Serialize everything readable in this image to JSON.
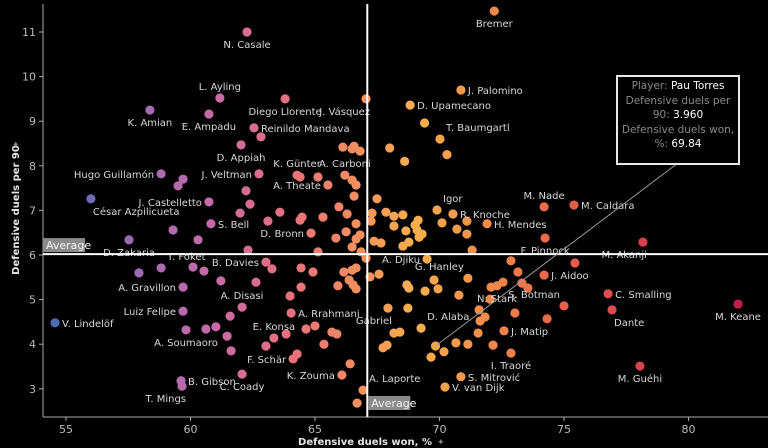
{
  "chart_data": {
    "type": "scatter",
    "xlabel": "Defensive duels won, %",
    "ylabel": "Defensive duels per 90",
    "xlim": [
      53.1,
      83.2
    ],
    "ylim": [
      2.6,
      11.6
    ],
    "xticks": [
      55,
      60,
      65,
      70,
      75,
      80
    ],
    "yticks": [
      3,
      4,
      5,
      6,
      7,
      8,
      9,
      10,
      11
    ],
    "average": {
      "label": "Average",
      "x": 67.1,
      "y": 6.02
    },
    "color_scale": [
      "#4a6bb0",
      "#9a6ab8",
      "#c86aa5",
      "#e8707c",
      "#f4925c",
      "#f7b04e",
      "#f08a4c",
      "#e8604a",
      "#d84050",
      "#c0204a"
    ],
    "tooltip": {
      "player_label": "Player:",
      "player": "Pau Torres",
      "y_label": "Defensive duels per 90:",
      "y_value": "3.960",
      "x_label": "Defensive duels won, %:",
      "x_value": "69.84",
      "x": 69.84,
      "y": 3.96
    },
    "labeled_points": [
      {
        "name": "Bremer",
        "x": 72.2,
        "y": 11.47,
        "pos": "below"
      },
      {
        "name": "N. Casale",
        "x": 62.27,
        "y": 11.0,
        "pos": "below"
      },
      {
        "name": "L. Ayling",
        "x": 61.18,
        "y": 9.52,
        "pos": "above"
      },
      {
        "name": "Diego Llorente",
        "x": 63.8,
        "y": 9.5,
        "pos": "below"
      },
      {
        "name": "K. Amian",
        "x": 58.37,
        "y": 9.25,
        "pos": "below"
      },
      {
        "name": "E. Ampadu",
        "x": 60.74,
        "y": 9.16,
        "pos": "below"
      },
      {
        "name": "Reinildo Mandava",
        "x": 62.55,
        "y": 8.85,
        "pos": "right"
      },
      {
        "name": "J. Vásquez",
        "x": 67.05,
        "y": 9.5,
        "pos": "belowleft"
      },
      {
        "name": "J. Palomino",
        "x": 70.86,
        "y": 9.7,
        "pos": "right"
      },
      {
        "name": "D. Upamecano",
        "x": 68.82,
        "y": 9.36,
        "pos": "right"
      },
      {
        "name": "T. Baumgartl",
        "x": 70.02,
        "y": 8.6,
        "pos": "aboveright"
      },
      {
        "name": "D. Appiah",
        "x": 62.03,
        "y": 8.47,
        "pos": "below"
      },
      {
        "name": "J. Veltman",
        "x": 62.75,
        "y": 7.82,
        "pos": "left"
      },
      {
        "name": "Hugo Guillamón",
        "x": 58.82,
        "y": 7.82,
        "pos": "left"
      },
      {
        "name": "K. Günter",
        "x": 64.28,
        "y": 7.79,
        "pos": "above"
      },
      {
        "name": "A. Carboni",
        "x": 66.2,
        "y": 7.79,
        "pos": "above"
      },
      {
        "name": "A. Theate",
        "x": 65.52,
        "y": 7.57,
        "pos": "left"
      },
      {
        "name": "J. Castelletto",
        "x": 60.74,
        "y": 7.19,
        "pos": "left"
      },
      {
        "name": "César Azpilicueta",
        "x": 56.0,
        "y": 7.26,
        "pos": "belowright"
      },
      {
        "name": "S. Bell",
        "x": 60.82,
        "y": 6.7,
        "pos": "right"
      },
      {
        "name": "D. Bronn",
        "x": 64.84,
        "y": 6.49,
        "pos": "left"
      },
      {
        "name": "Igor",
        "x": 69.9,
        "y": 7.01,
        "pos": "aboveright"
      },
      {
        "name": "R. Knoche",
        "x": 70.54,
        "y": 6.92,
        "pos": "right"
      },
      {
        "name": "H. Mendes",
        "x": 71.91,
        "y": 6.7,
        "pos": "right"
      },
      {
        "name": "M. Nade",
        "x": 74.2,
        "y": 7.08,
        "pos": "above"
      },
      {
        "name": "M. Caldara",
        "x": 75.4,
        "y": 7.12,
        "pos": "right"
      },
      {
        "name": "F. Pinnock",
        "x": 74.24,
        "y": 6.38,
        "pos": "below"
      },
      {
        "name": "M. Akanji",
        "x": 78.17,
        "y": 6.29,
        "pos": "belowleft"
      },
      {
        "name": "A. Djiku",
        "x": 69.5,
        "y": 5.91,
        "pos": "left"
      },
      {
        "name": "G. Hanley",
        "x": 71.14,
        "y": 5.48,
        "pos": "aboveleft"
      },
      {
        "name": "J. Aidoo",
        "x": 74.2,
        "y": 5.55,
        "pos": "right"
      },
      {
        "name": "S. Botman",
        "x": 75.0,
        "y": 4.86,
        "pos": "aboveleft"
      },
      {
        "name": "C. Smalling",
        "x": 76.77,
        "y": 5.13,
        "pos": "right"
      },
      {
        "name": "Dante",
        "x": 76.93,
        "y": 4.77,
        "pos": "belowright"
      },
      {
        "name": "M. Keane",
        "x": 81.99,
        "y": 4.9,
        "pos": "below"
      },
      {
        "name": "N. Stark",
        "x": 72.31,
        "y": 5.31,
        "pos": "below"
      },
      {
        "name": "D. Alaba",
        "x": 69.26,
        "y": 4.36,
        "pos": "aboveright"
      },
      {
        "name": "J. Matip",
        "x": 72.59,
        "y": 4.3,
        "pos": "right"
      },
      {
        "name": "Gabriel",
        "x": 67.93,
        "y": 4.81,
        "pos": "belowleft"
      },
      {
        "name": "I. Traoré",
        "x": 72.87,
        "y": 3.8,
        "pos": "below"
      },
      {
        "name": "S. Mitrović",
        "x": 70.86,
        "y": 3.27,
        "pos": "right"
      },
      {
        "name": "V. van Dijk",
        "x": 70.22,
        "y": 3.04,
        "pos": "right"
      },
      {
        "name": "M. Guéhi",
        "x": 78.05,
        "y": 3.51,
        "pos": "below"
      },
      {
        "name": "A. Laporte",
        "x": 66.93,
        "y": 2.97,
        "pos": "aboveright"
      },
      {
        "name": "D. Zakaria",
        "x": 57.53,
        "y": 6.34,
        "pos": "below"
      },
      {
        "name": "T. Foket",
        "x": 58.82,
        "y": 5.71,
        "pos": "aboveright"
      },
      {
        "name": "A. Gravillon",
        "x": 59.7,
        "y": 5.28,
        "pos": "left"
      },
      {
        "name": "B. Davies",
        "x": 63.03,
        "y": 5.84,
        "pos": "left"
      },
      {
        "name": "Luiz Felipe",
        "x": 59.7,
        "y": 4.74,
        "pos": "left"
      },
      {
        "name": "V. Lindelöf",
        "x": 54.56,
        "y": 4.48,
        "pos": "right"
      },
      {
        "name": "A. Disasi",
        "x": 62.07,
        "y": 4.83,
        "pos": "above"
      },
      {
        "name": "A. Rrahmani",
        "x": 64.04,
        "y": 4.7,
        "pos": "right"
      },
      {
        "name": "E. Konsa",
        "x": 63.35,
        "y": 4.14,
        "pos": "above"
      },
      {
        "name": "A. Soumaoro",
        "x": 59.82,
        "y": 4.32,
        "pos": "below"
      },
      {
        "name": "F. Schär",
        "x": 64.12,
        "y": 3.67,
        "pos": "left"
      },
      {
        "name": "K. Zouma",
        "x": 66.08,
        "y": 3.31,
        "pos": "left"
      },
      {
        "name": "B. Gibson",
        "x": 59.62,
        "y": 3.18,
        "pos": "right"
      },
      {
        "name": "T. Mings",
        "x": 59.66,
        "y": 3.06,
        "pos": "belowleft"
      },
      {
        "name": "C. Coady",
        "x": 62.07,
        "y": 3.33,
        "pos": "below"
      }
    ],
    "points": [
      [
        69.84,
        3.96
      ],
      [
        62.83,
        8.65
      ],
      [
        66.12,
        8.42
      ],
      [
        66.49,
        8.38
      ],
      [
        66.57,
        8.44
      ],
      [
        66.81,
        8.33
      ],
      [
        64.4,
        7.75
      ],
      [
        65.12,
        7.75
      ],
      [
        66.49,
        7.68
      ],
      [
        66.65,
        7.57
      ],
      [
        66.57,
        7.32
      ],
      [
        67.49,
        7.26
      ],
      [
        62.23,
        7.44
      ],
      [
        62.39,
        7.14
      ],
      [
        59.7,
        7.7
      ],
      [
        59.5,
        7.55
      ],
      [
        61.99,
        6.94
      ],
      [
        59.3,
        6.56
      ],
      [
        60.3,
        6.34
      ],
      [
        62.31,
        6.11
      ],
      [
        63.11,
        6.76
      ],
      [
        63.59,
        6.96
      ],
      [
        64.4,
        6.78
      ],
      [
        64.48,
        6.85
      ],
      [
        65.32,
        6.85
      ],
      [
        65.96,
        7.08
      ],
      [
        66.29,
        6.92
      ],
      [
        65.84,
        6.38
      ],
      [
        66.25,
        6.52
      ],
      [
        66.49,
        6.18
      ],
      [
        66.65,
        6.7
      ],
      [
        66.81,
        6.45
      ],
      [
        66.65,
        6.36
      ],
      [
        66.85,
        6.07
      ],
      [
        67.05,
        5.93
      ],
      [
        65.12,
        6.07
      ],
      [
        63.27,
        5.69
      ],
      [
        64.44,
        5.71
      ],
      [
        64.92,
        5.62
      ],
      [
        66.16,
        5.62
      ],
      [
        66.49,
        5.66
      ],
      [
        66.65,
        5.71
      ],
      [
        66.37,
        5.44
      ],
      [
        66.53,
        5.33
      ],
      [
        66.65,
        5.24
      ],
      [
        65.92,
        5.31
      ],
      [
        64.44,
        5.28
      ],
      [
        64.0,
        5.08
      ],
      [
        64.64,
        4.34
      ],
      [
        65.0,
        4.41
      ],
      [
        65.68,
        4.27
      ],
      [
        65.88,
        4.23
      ],
      [
        65.36,
        4.0
      ],
      [
        63.84,
        4.23
      ],
      [
        63.03,
        3.96
      ],
      [
        64.28,
        3.78
      ],
      [
        66.41,
        3.56
      ],
      [
        66.69,
        2.68
      ],
      [
        61.59,
        4.63
      ],
      [
        61.47,
        4.18
      ],
      [
        61.63,
        3.85
      ],
      [
        61.02,
        4.39
      ],
      [
        60.62,
        4.34
      ],
      [
        61.22,
        5.42
      ],
      [
        62.63,
        5.39
      ],
      [
        60.54,
        5.64
      ],
      [
        60.1,
        5.73
      ],
      [
        57.93,
        5.6
      ],
      [
        67.21,
        5.51
      ],
      [
        67.29,
        6.94
      ],
      [
        67.25,
        6.76
      ],
      [
        67.85,
        6.96
      ],
      [
        68.17,
        6.87
      ],
      [
        68.53,
        6.9
      ],
      [
        68.17,
        6.65
      ],
      [
        68.65,
        6.54
      ],
      [
        69.02,
        6.67
      ],
      [
        69.14,
        6.78
      ],
      [
        69.1,
        6.56
      ],
      [
        69.3,
        6.47
      ],
      [
        69.18,
        6.4
      ],
      [
        68.77,
        6.29
      ],
      [
        68.53,
        6.2
      ],
      [
        67.37,
        6.31
      ],
      [
        67.65,
        6.27
      ],
      [
        70.1,
        6.72
      ],
      [
        70.7,
        6.58
      ],
      [
        71.1,
        6.76
      ],
      [
        71.1,
        6.47
      ],
      [
        71.31,
        6.11
      ],
      [
        67.57,
        5.57
      ],
      [
        68.69,
        5.33
      ],
      [
        68.77,
        5.26
      ],
      [
        69.42,
        5.19
      ],
      [
        69.78,
        5.44
      ],
      [
        69.94,
        5.24
      ],
      [
        70.78,
        5.1
      ],
      [
        72.07,
        5.28
      ],
      [
        72.55,
        5.39
      ],
      [
        72.87,
        5.87
      ],
      [
        73.15,
        5.62
      ],
      [
        73.31,
        5.37
      ],
      [
        73.55,
        5.26
      ],
      [
        75.44,
        5.82
      ],
      [
        72.03,
        5.01
      ],
      [
        71.59,
        4.77
      ],
      [
        71.83,
        4.61
      ],
      [
        71.63,
        4.52
      ],
      [
        73.03,
        4.7
      ],
      [
        71.55,
        4.25
      ],
      [
        74.32,
        4.57
      ],
      [
        68.73,
        4.81
      ],
      [
        68.17,
        4.25
      ],
      [
        68.41,
        4.27
      ],
      [
        67.73,
        3.92
      ],
      [
        67.89,
        3.98
      ],
      [
        70.18,
        3.83
      ],
      [
        70.66,
        4.03
      ],
      [
        71.14,
        4.0
      ],
      [
        72.15,
        3.98
      ],
      [
        69.66,
        3.71
      ],
      [
        68.0,
        8.4
      ],
      [
        68.6,
        8.1
      ],
      [
        69.4,
        8.96
      ],
      [
        70.3,
        8.25
      ]
    ]
  }
}
